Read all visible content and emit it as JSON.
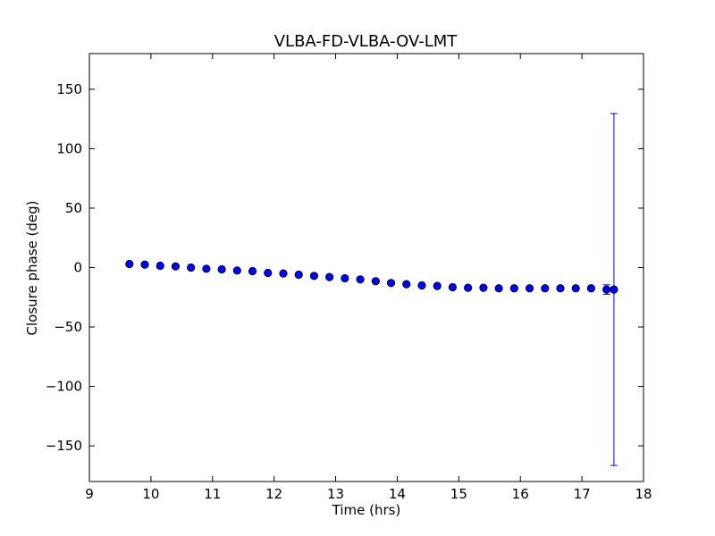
{
  "chart_data": {
    "type": "scatter",
    "title": "VLBA-FD-VLBA-OV-LMT",
    "xlabel": "Time (hrs)",
    "ylabel": "Closure phase (deg)",
    "xlim": [
      9,
      18
    ],
    "ylim": [
      -180,
      180
    ],
    "x_ticks": [
      9,
      10,
      11,
      12,
      13,
      14,
      15,
      16,
      17,
      18
    ],
    "x_tick_labels": [
      "9",
      "10",
      "11",
      "12",
      "13",
      "14",
      "15",
      "16",
      "17",
      "18"
    ],
    "y_ticks": [
      -150,
      -100,
      -50,
      0,
      50,
      100,
      150
    ],
    "y_tick_labels": [
      "−150",
      "−100",
      "−50",
      "0",
      "50",
      "100",
      "150"
    ],
    "grid": false,
    "marker_color": "#0000ff",
    "errorbar_color": "#0000ff",
    "x": [
      9.65,
      9.9,
      10.15,
      10.4,
      10.65,
      10.9,
      11.15,
      11.4,
      11.65,
      11.9,
      12.15,
      12.4,
      12.65,
      12.9,
      13.15,
      13.4,
      13.65,
      13.9,
      14.15,
      14.4,
      14.65,
      14.9,
      15.15,
      15.4,
      15.65,
      15.9,
      16.15,
      16.4,
      16.65,
      16.9,
      17.15,
      17.4,
      17.52
    ],
    "y": [
      3,
      2.5,
      1.5,
      1,
      0,
      -1,
      -1.5,
      -2.5,
      -3,
      -4.5,
      -5,
      -6,
      -7,
      -8,
      -9,
      -10,
      -11.5,
      -13,
      -14,
      -15,
      -15.5,
      -16.5,
      -17,
      -17,
      -17.5,
      -17.5,
      -17.5,
      -17.5,
      -17.5,
      -17.5,
      -17.5,
      -18.5,
      -18.5
    ],
    "yerr": [
      0.5,
      0.5,
      0.5,
      0.5,
      0.5,
      0.5,
      0.5,
      0.5,
      0.5,
      0.5,
      0.5,
      0.5,
      0.5,
      0.5,
      0.5,
      0.5,
      0.5,
      0.5,
      0.5,
      0.5,
      0.5,
      0.5,
      0.5,
      0.5,
      0.5,
      0.5,
      0.5,
      0.5,
      0.5,
      0.5,
      0.5,
      4,
      148
    ]
  }
}
